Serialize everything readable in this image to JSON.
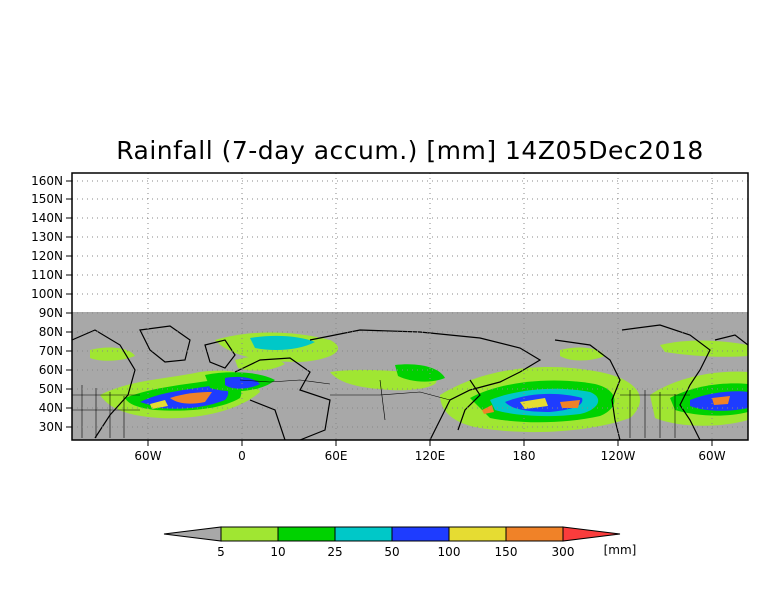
{
  "title": "Rainfall (7-day accum.) [mm] 14Z05Dec2018",
  "map": {
    "lat_labels": [
      "160N",
      "150N",
      "140N",
      "130N",
      "120N",
      "110N",
      "100N",
      "90N",
      "80N",
      "70N",
      "60N",
      "50N",
      "40N",
      "30N"
    ],
    "lon_labels": [
      "60W",
      "0",
      "60E",
      "120E",
      "180",
      "120W",
      "60W"
    ],
    "no_data_color": "#a8a8a8",
    "data_band": "observed rainfall between ~25N and ~90N"
  },
  "colorbar": {
    "unit": "[mm]",
    "ticks": [
      "5",
      "10",
      "25",
      "50",
      "100",
      "150",
      "300"
    ],
    "colors": [
      "#a8a8a8",
      "#a0e632",
      "#00d200",
      "#00c8c8",
      "#1e3cff",
      "#e6dc32",
      "#f08228",
      "#fa3c3c"
    ]
  }
}
